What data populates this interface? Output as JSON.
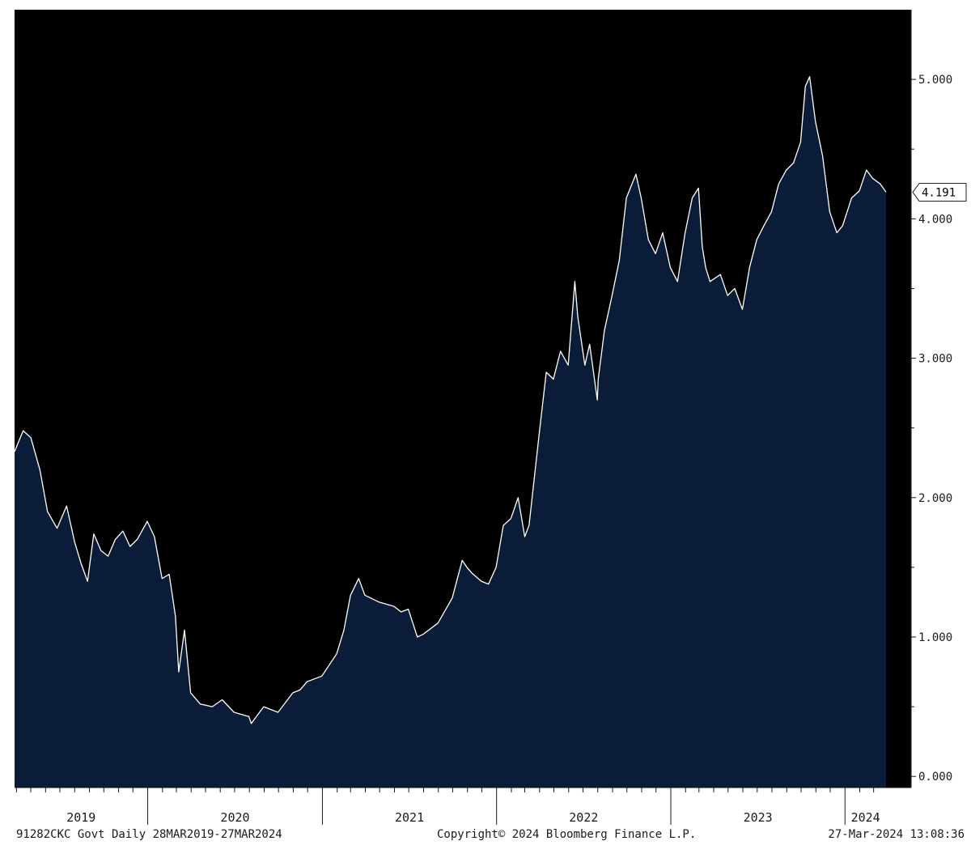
{
  "footer": {
    "left": "91282CKC Govt  Daily 28MAR2019-27MAR2024",
    "center": "Copyright© 2024 Bloomberg Finance L.P.",
    "right": "27-Mar-2024 13:08:36"
  },
  "colors": {
    "background": "#000000",
    "area_fill": "#0b1c38",
    "line": "#ffffff",
    "axis_text": "#1a1a1a",
    "last_value_label_bg": "#ffffff"
  },
  "chart_data": {
    "type": "area",
    "title": "",
    "xlabel": "",
    "ylabel": "",
    "x_range": [
      "2019-03-28",
      "2024-03-27"
    ],
    "ylim": [
      -0.08,
      5.5
    ],
    "y_ticks": [
      {
        "value": 0,
        "label": "0.000"
      },
      {
        "value": 1,
        "label": "1.000"
      },
      {
        "value": 2,
        "label": "2.000"
      },
      {
        "value": 3,
        "label": "3.000"
      },
      {
        "value": 4,
        "label": "4.000"
      },
      {
        "value": 5,
        "label": "5.000"
      }
    ],
    "x_year_labels": [
      "2019",
      "2020",
      "2021",
      "2022",
      "2023",
      "2024"
    ],
    "last_value_label": "4.191",
    "grid": false,
    "legend": "none",
    "series": [
      {
        "x": [
          "2019-03-28",
          "2019-04-15",
          "2019-05-01",
          "2019-05-20",
          "2019-06-05",
          "2019-06-25",
          "2019-07-15",
          "2019-08-01",
          "2019-08-15",
          "2019-08-28",
          "2019-09-10",
          "2019-09-25",
          "2019-10-10",
          "2019-10-25",
          "2019-11-10",
          "2019-11-25",
          "2019-12-10",
          "2019-12-31",
          "2020-01-15",
          "2020-01-31",
          "2020-02-15",
          "2020-02-28",
          "2020-03-06",
          "2020-03-18",
          "2020-03-31",
          "2020-04-20",
          "2020-05-15",
          "2020-06-05",
          "2020-06-30",
          "2020-07-31",
          "2020-08-05",
          "2020-08-31",
          "2020-09-30",
          "2020-10-31",
          "2020-11-15",
          "2020-11-30",
          "2020-12-31",
          "2021-01-31",
          "2021-02-15",
          "2021-03-01",
          "2021-03-18",
          "2021-03-31",
          "2021-04-30",
          "2021-05-31",
          "2021-06-15",
          "2021-06-30",
          "2021-07-19",
          "2021-07-31",
          "2021-08-31",
          "2021-09-30",
          "2021-10-21",
          "2021-10-31",
          "2021-11-10",
          "2021-11-30",
          "2021-12-15",
          "2021-12-31",
          "2022-01-15",
          "2022-01-31",
          "2022-02-15",
          "2022-03-01",
          "2022-03-10",
          "2022-03-31",
          "2022-04-15",
          "2022-04-30",
          "2022-05-15",
          "2022-05-31",
          "2022-06-14",
          "2022-06-20",
          "2022-07-05",
          "2022-07-15",
          "2022-07-31",
          "2022-08-02",
          "2022-08-15",
          "2022-08-31",
          "2022-09-15",
          "2022-09-30",
          "2022-10-20",
          "2022-10-31",
          "2022-11-15",
          "2022-11-30",
          "2022-12-15",
          "2022-12-31",
          "2023-01-15",
          "2023-01-31",
          "2023-02-15",
          "2023-02-28",
          "2023-03-08",
          "2023-03-15",
          "2023-03-24",
          "2023-04-15",
          "2023-04-30",
          "2023-05-15",
          "2023-05-31",
          "2023-06-15",
          "2023-06-30",
          "2023-07-15",
          "2023-07-31",
          "2023-08-15",
          "2023-08-31",
          "2023-09-15",
          "2023-09-30",
          "2023-10-10",
          "2023-10-19",
          "2023-10-31",
          "2023-11-15",
          "2023-11-30",
          "2023-12-15",
          "2023-12-27",
          "2024-01-15",
          "2024-01-31",
          "2024-02-15",
          "2024-02-28",
          "2024-03-15",
          "2024-03-27"
        ],
        "values": [
          2.33,
          2.48,
          2.43,
          2.2,
          1.9,
          1.78,
          1.94,
          1.68,
          1.52,
          1.4,
          1.74,
          1.62,
          1.58,
          1.7,
          1.76,
          1.65,
          1.7,
          1.83,
          1.72,
          1.42,
          1.45,
          1.15,
          0.75,
          1.05,
          0.6,
          0.52,
          0.5,
          0.55,
          0.46,
          0.43,
          0.38,
          0.5,
          0.46,
          0.6,
          0.62,
          0.68,
          0.72,
          0.88,
          1.05,
          1.3,
          1.42,
          1.3,
          1.25,
          1.22,
          1.18,
          1.2,
          1.0,
          1.02,
          1.1,
          1.28,
          1.55,
          1.5,
          1.46,
          1.4,
          1.38,
          1.5,
          1.8,
          1.85,
          2.0,
          1.72,
          1.8,
          2.45,
          2.9,
          2.85,
          3.05,
          2.95,
          3.55,
          3.3,
          2.95,
          3.1,
          2.7,
          2.85,
          3.2,
          3.45,
          3.7,
          4.15,
          4.32,
          4.15,
          3.85,
          3.75,
          3.9,
          3.65,
          3.55,
          3.9,
          4.15,
          4.22,
          3.8,
          3.65,
          3.55,
          3.6,
          3.45,
          3.5,
          3.35,
          3.65,
          3.85,
          3.95,
          4.05,
          4.25,
          4.35,
          4.4,
          4.55,
          4.95,
          5.02,
          4.7,
          4.45,
          4.05,
          3.9,
          3.95,
          4.15,
          4.2,
          4.35,
          4.29,
          4.25,
          4.191
        ]
      }
    ]
  }
}
